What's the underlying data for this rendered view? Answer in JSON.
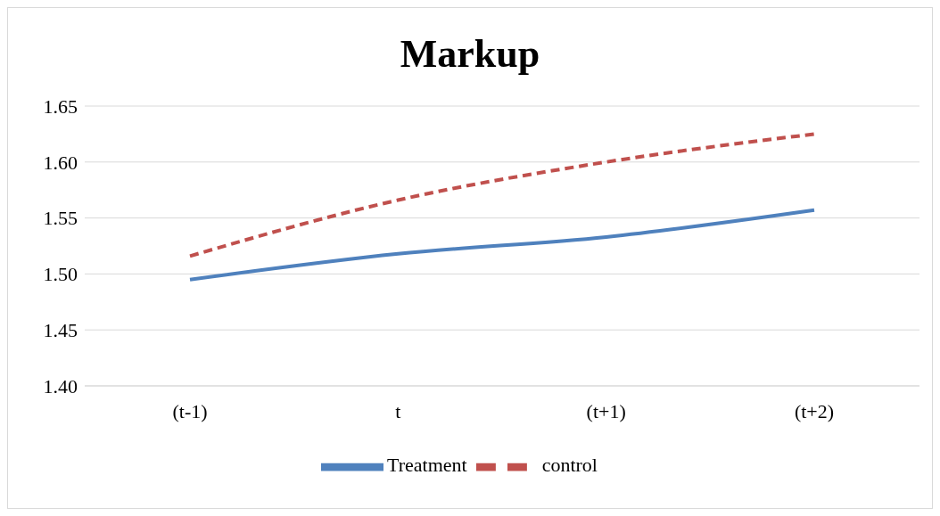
{
  "chart_data": {
    "type": "line",
    "title": "Markup",
    "categories": [
      "(t-1)",
      "t",
      "(t+1)",
      "(t+2)"
    ],
    "series": [
      {
        "name": "Treatment",
        "color": "#4f81bd",
        "values": [
          1.495,
          1.518,
          1.533,
          1.557
        ],
        "line_style": "solid"
      },
      {
        "name": "control",
        "color": "#c0504d",
        "values": [
          1.516,
          1.566,
          1.6,
          1.625
        ],
        "line_style": "dashed"
      }
    ],
    "ylim": [
      1.4,
      1.65
    ],
    "yticks": [
      {
        "value": 1.4,
        "label": "1.40"
      },
      {
        "value": 1.45,
        "label": "1.45"
      },
      {
        "value": 1.5,
        "label": "1.50"
      },
      {
        "value": 1.55,
        "label": "1.55"
      },
      {
        "value": 1.6,
        "label": "1.60"
      },
      {
        "value": 1.65,
        "label": "1.65"
      }
    ],
    "grid": "y",
    "legend": "bottom",
    "marker": "none"
  }
}
